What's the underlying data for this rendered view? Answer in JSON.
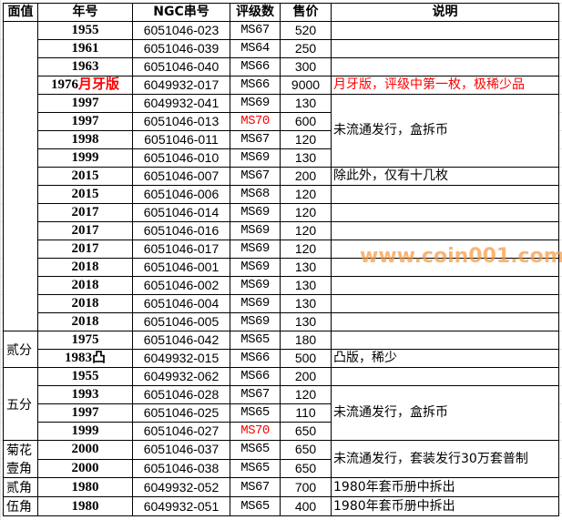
{
  "header": [
    "面值",
    "年号",
    "NGC串号",
    "评级数",
    "售价",
    "说明"
  ],
  "colors": {
    "highlight": "#ff0000",
    "watermark": "#f5963c"
  },
  "rows": [
    {
      "year": "1955",
      "serial": "6051046-023",
      "grade": "MS67",
      "price": "520"
    },
    {
      "year": "1961",
      "serial": "6051046-039",
      "grade": "MS64",
      "price": "250"
    },
    {
      "year": "1963",
      "serial": "6051046-040",
      "grade": "MS66",
      "price": "300"
    },
    {
      "year": "1976",
      "year_suffix": "月牙版",
      "serial": "6049932-017",
      "grade": "MS66",
      "price": "9000"
    },
    {
      "year": "1997",
      "serial": "6049932-041",
      "grade": "MS69",
      "price": "130"
    },
    {
      "year": "1997",
      "serial": "6051046-013",
      "grade": "MS70",
      "grade_red": true,
      "price": "600"
    },
    {
      "year": "1998",
      "serial": "6051046-011",
      "grade": "MS67",
      "price": "120"
    },
    {
      "year": "1999",
      "serial": "6051046-010",
      "grade": "MS69",
      "price": "130"
    },
    {
      "year": "2015",
      "serial": "6051046-007",
      "grade": "MS67",
      "price": "200"
    },
    {
      "year": "2015",
      "serial": "6051046-006",
      "grade": "MS68",
      "price": "120"
    },
    {
      "year": "2017",
      "serial": "6051046-014",
      "grade": "MS69",
      "price": "120"
    },
    {
      "year": "2017",
      "serial": "6051046-016",
      "grade": "MS69",
      "price": "120"
    },
    {
      "year": "2017",
      "serial": "6051046-017",
      "grade": "MS69",
      "price": "120"
    },
    {
      "year": "2018",
      "serial": "6051046-001",
      "grade": "MS69",
      "price": "130"
    },
    {
      "year": "2018",
      "serial": "6051046-002",
      "grade": "MS69",
      "price": "130"
    },
    {
      "year": "2018",
      "serial": "6051046-004",
      "grade": "MS69",
      "price": "130"
    },
    {
      "year": "2018",
      "serial": "6051046-005",
      "grade": "MS69",
      "price": "130"
    },
    {
      "year": "1975",
      "serial": "6051046-042",
      "grade": "MS65",
      "price": "180"
    },
    {
      "year": "1983凸",
      "serial": "6049932-015",
      "grade": "MS66",
      "price": "500"
    },
    {
      "year": "1955",
      "serial": "6049932-062",
      "grade": "MS66",
      "price": "200"
    },
    {
      "year": "1993",
      "serial": "6051046-028",
      "grade": "MS67",
      "price": "120"
    },
    {
      "year": "1997",
      "serial": "6051046-025",
      "grade": "MS65",
      "price": "110"
    },
    {
      "year": "1999",
      "serial": "6051046-027",
      "grade": "MS70",
      "grade_red": true,
      "price": "650"
    },
    {
      "year": "2000",
      "serial": "6051046-037",
      "grade": "MS65",
      "price": "650"
    },
    {
      "year": "2000",
      "serial": "6051046-038",
      "grade": "MS65",
      "price": "650"
    },
    {
      "year": "1980",
      "serial": "6049932-052",
      "grade": "MS67",
      "price": "700"
    },
    {
      "year": "1980",
      "serial": "6049932-051",
      "grade": "MS65",
      "price": "400"
    }
  ],
  "face_groups": [
    {
      "start": 0,
      "span": 17,
      "label": ""
    },
    {
      "start": 17,
      "span": 2,
      "label": "贰分"
    },
    {
      "start": 19,
      "span": 4,
      "label": "五分"
    },
    {
      "start": 23,
      "span": 2,
      "label": "菊花壹角"
    },
    {
      "start": 25,
      "span": 1,
      "label": "贰角"
    },
    {
      "start": 26,
      "span": 1,
      "label": "伍角"
    }
  ],
  "notes": [
    {
      "start": 0,
      "span": 1,
      "text": ""
    },
    {
      "start": 1,
      "span": 1,
      "text": ""
    },
    {
      "start": 2,
      "span": 1,
      "text": ""
    },
    {
      "start": 3,
      "span": 1,
      "text": "月牙版，评级中第一枚，极稀少品",
      "red": true
    },
    {
      "start": 4,
      "span": 4,
      "text": "未流通发行，盒拆币"
    },
    {
      "start": 8,
      "span": 1,
      "text": "除此外，仅有十几枚"
    },
    {
      "start": 9,
      "span": 1,
      "text": ""
    },
    {
      "start": 10,
      "span": 1,
      "text": ""
    },
    {
      "start": 11,
      "span": 1,
      "text": ""
    },
    {
      "start": 12,
      "span": 1,
      "text": ""
    },
    {
      "start": 13,
      "span": 1,
      "text": ""
    },
    {
      "start": 14,
      "span": 1,
      "text": ""
    },
    {
      "start": 15,
      "span": 1,
      "text": ""
    },
    {
      "start": 16,
      "span": 1,
      "text": ""
    },
    {
      "start": 17,
      "span": 1,
      "text": ""
    },
    {
      "start": 18,
      "span": 1,
      "text": "凸版，稀少"
    },
    {
      "start": 19,
      "span": 1,
      "text": ""
    },
    {
      "start": 20,
      "span": 3,
      "text": "未流通发行，盒拆币"
    },
    {
      "start": 23,
      "span": 2,
      "text": " 未流通发行，套装发行30万套普制"
    },
    {
      "start": 25,
      "span": 1,
      "text": "1980年套币册中拆出"
    },
    {
      "start": 26,
      "span": 1,
      "text": "1980年套币册中拆出"
    }
  ],
  "watermark": "www.coin001.com"
}
